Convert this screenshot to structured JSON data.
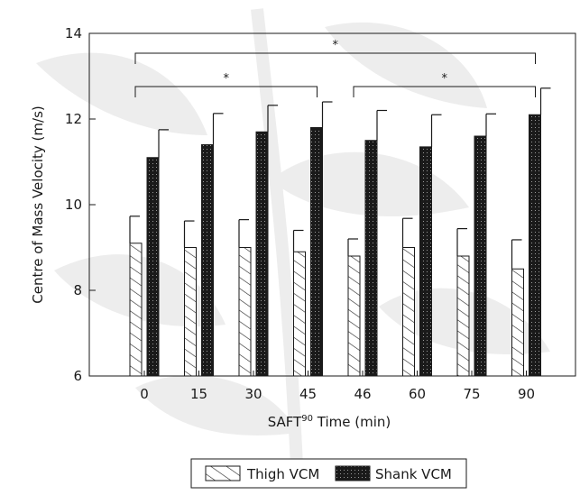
{
  "chart_data": {
    "type": "bar",
    "categories": [
      "0",
      "15",
      "30",
      "45",
      "46",
      "60",
      "75",
      "90"
    ],
    "series": [
      {
        "name": "Thigh VCM",
        "pattern": "hatched",
        "values": [
          9.1,
          9.0,
          9.0,
          8.9,
          8.8,
          9.0,
          8.8,
          8.5
        ],
        "error": [
          0.63,
          0.62,
          0.65,
          0.5,
          0.4,
          0.68,
          0.64,
          0.68
        ]
      },
      {
        "name": "Shank VCM",
        "pattern": "dotted-dark",
        "values": [
          11.1,
          11.4,
          11.7,
          11.8,
          11.5,
          11.35,
          11.6,
          12.1
        ],
        "error": [
          0.65,
          0.73,
          0.62,
          0.6,
          0.7,
          0.75,
          0.52,
          0.62
        ]
      }
    ],
    "xlabel": {
      "main": "SAFT",
      "sup": "90",
      "rest": " Time (min)"
    },
    "ylabel": "Centre of Mass Velocity (m/s)",
    "ylim": [
      6,
      14
    ],
    "yticks": [
      "6",
      "8",
      "10",
      "12",
      "14"
    ],
    "significance": [
      {
        "from": 0,
        "to": 3,
        "label": "*"
      },
      {
        "from": 4,
        "to": 7,
        "label": "*"
      },
      {
        "from": 0,
        "to": 7,
        "label": "*"
      }
    ],
    "legend_position": "bottom-center",
    "colors": {
      "shank_fill": "#1a1a1a",
      "thigh_fill": "#ffffff",
      "watermark": "#ededed"
    }
  }
}
